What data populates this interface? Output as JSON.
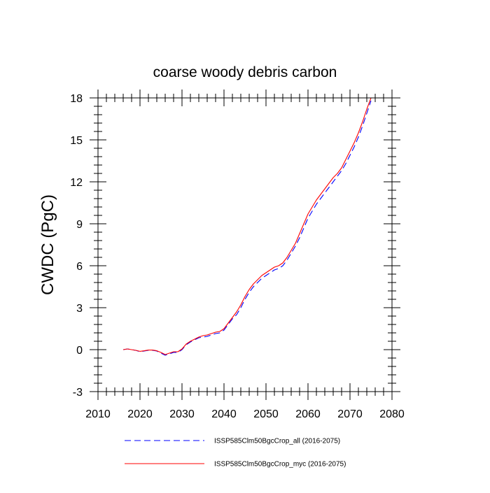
{
  "chart_data": {
    "type": "line",
    "title": "coarse woody debris carbon",
    "xlabel": "",
    "ylabel": "CWDC  (PgC)",
    "xlim": [
      2010,
      2080
    ],
    "ylim": [
      -3,
      18
    ],
    "xticks": [
      2010,
      2020,
      2030,
      2040,
      2050,
      2060,
      2070,
      2080
    ],
    "yticks": [
      -3,
      0,
      3,
      6,
      9,
      12,
      15,
      18
    ],
    "xtick_labels": [
      "2010",
      "2020",
      "2030",
      "2040",
      "2050",
      "2060",
      "2070",
      "2080"
    ],
    "ytick_labels": [
      "-3",
      "0",
      "3",
      "6",
      "9",
      "12",
      "15",
      "18"
    ],
    "x_minor_step": 2,
    "y_minor_step": 0.6,
    "grid": false,
    "legend_position": "bottom",
    "series": [
      {
        "name": "ISSP585Clm50BgcCrop_all (2016-2075)",
        "color": "#0000ff",
        "style": "dashed",
        "x": [
          2016,
          2017,
          2018,
          2019,
          2020,
          2021,
          2022,
          2023,
          2024,
          2025,
          2026,
          2027,
          2028,
          2029,
          2030,
          2031,
          2032,
          2033,
          2034,
          2035,
          2036,
          2037,
          2038,
          2039,
          2040,
          2041,
          2042,
          2043,
          2044,
          2045,
          2046,
          2047,
          2048,
          2049,
          2050,
          2051,
          2052,
          2053,
          2054,
          2055,
          2056,
          2057,
          2058,
          2059,
          2060,
          2061,
          2062,
          2063,
          2064,
          2065,
          2066,
          2067,
          2068,
          2069,
          2070,
          2071,
          2072,
          2073,
          2074,
          2075
        ],
        "y": [
          0.0,
          0.05,
          0.0,
          -0.05,
          -0.15,
          -0.1,
          -0.05,
          -0.05,
          -0.1,
          -0.25,
          -0.4,
          -0.3,
          -0.2,
          -0.2,
          0.0,
          0.35,
          0.55,
          0.7,
          0.85,
          0.9,
          0.95,
          1.05,
          1.15,
          1.2,
          1.4,
          1.8,
          2.2,
          2.5,
          3.0,
          3.6,
          4.1,
          4.5,
          4.8,
          5.1,
          5.3,
          5.5,
          5.7,
          5.8,
          6.0,
          6.4,
          6.9,
          7.4,
          8.0,
          8.7,
          9.4,
          9.9,
          10.4,
          10.8,
          11.2,
          11.6,
          12.0,
          12.4,
          12.8,
          13.3,
          13.9,
          14.5,
          15.2,
          16.0,
          16.9,
          17.8
        ]
      },
      {
        "name": "ISSP585Clm50BgcCrop_myc (2016-2075)",
        "color": "#ff0000",
        "style": "solid",
        "x": [
          2016,
          2017,
          2018,
          2019,
          2020,
          2021,
          2022,
          2023,
          2024,
          2025,
          2026,
          2027,
          2028,
          2029,
          2030,
          2031,
          2032,
          2033,
          2034,
          2035,
          2036,
          2037,
          2038,
          2039,
          2040,
          2041,
          2042,
          2043,
          2044,
          2045,
          2046,
          2047,
          2048,
          2049,
          2050,
          2051,
          2052,
          2053,
          2054,
          2055,
          2056,
          2057,
          2058,
          2059,
          2060,
          2061,
          2062,
          2063,
          2064,
          2065,
          2066,
          2067,
          2068,
          2069,
          2070,
          2071,
          2072,
          2073,
          2074,
          2075
        ],
        "y": [
          0.0,
          0.05,
          0.0,
          -0.05,
          -0.12,
          -0.08,
          -0.03,
          -0.03,
          -0.08,
          -0.2,
          -0.35,
          -0.25,
          -0.15,
          -0.15,
          0.05,
          0.4,
          0.6,
          0.75,
          0.9,
          1.0,
          1.05,
          1.15,
          1.25,
          1.3,
          1.5,
          1.9,
          2.3,
          2.7,
          3.2,
          3.8,
          4.3,
          4.7,
          5.0,
          5.3,
          5.5,
          5.7,
          5.9,
          6.0,
          6.2,
          6.6,
          7.1,
          7.6,
          8.3,
          9.0,
          9.7,
          10.2,
          10.7,
          11.1,
          11.5,
          11.9,
          12.3,
          12.6,
          13.0,
          13.6,
          14.2,
          14.8,
          15.5,
          16.3,
          17.2,
          18.0
        ]
      }
    ]
  }
}
